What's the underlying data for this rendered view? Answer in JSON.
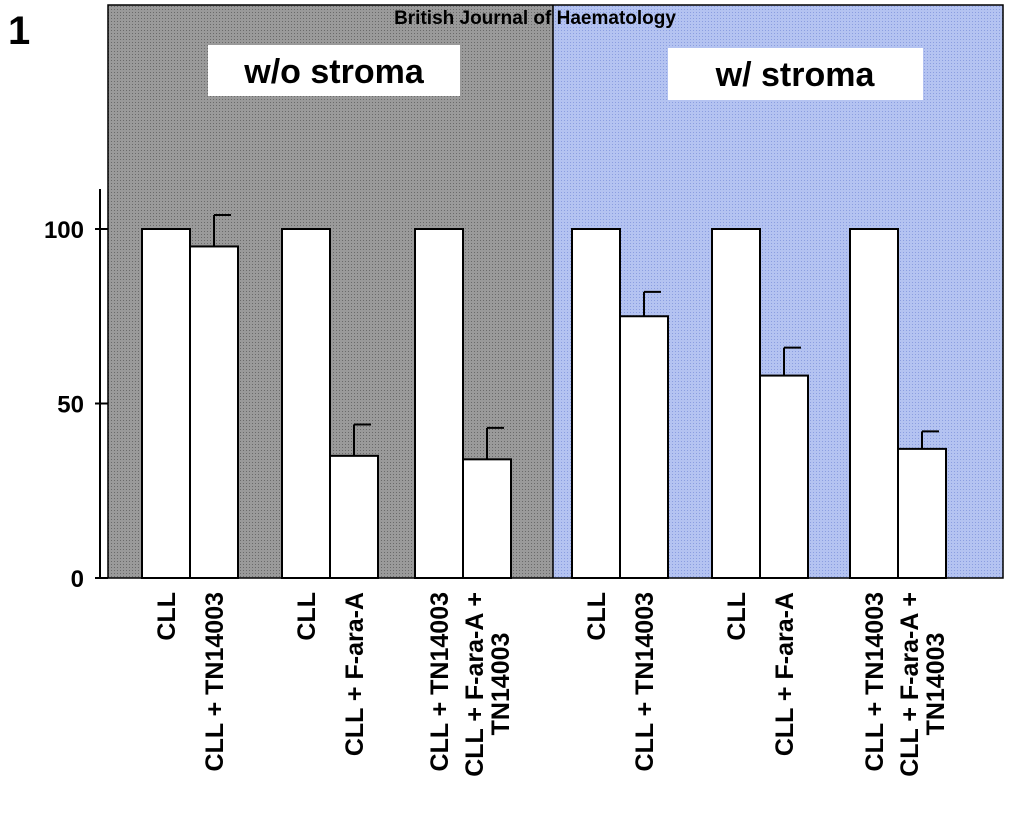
{
  "figure": {
    "panel_label": "1",
    "source_label": "British Journal of Haematology",
    "conditions": [
      "w/o stroma",
      "w/ stroma"
    ]
  },
  "colors": {
    "left_background": "#8c8c8c",
    "right_background": "#a9b9ec",
    "bars": "#ffffff",
    "outline": "#000000"
  },
  "chart_data": {
    "type": "bar",
    "title": "",
    "xlabel": "",
    "ylabel": "",
    "ylim": [
      0,
      100
    ],
    "yticks": [
      0,
      50,
      100
    ],
    "grid": false,
    "groups": [
      {
        "condition": "w/o stroma",
        "categories": [
          "CLL",
          "CLL + TN14003"
        ],
        "values": [
          100,
          95
        ],
        "errors": [
          null,
          9
        ]
      },
      {
        "condition": "w/o stroma",
        "categories": [
          "CLL",
          "CLL + F-ara-A"
        ],
        "values": [
          100,
          35
        ],
        "errors": [
          null,
          9
        ]
      },
      {
        "condition": "w/o stroma",
        "categories": [
          "CLL + TN14003",
          "CLL + F-ara-A + TN14003"
        ],
        "values": [
          100,
          34
        ],
        "errors": [
          null,
          9
        ]
      },
      {
        "condition": "w/ stroma",
        "categories": [
          "CLL",
          "CLL + TN14003"
        ],
        "values": [
          100,
          75
        ],
        "errors": [
          null,
          7
        ]
      },
      {
        "condition": "w/ stroma",
        "categories": [
          "CLL",
          "CLL + F-ara-A"
        ],
        "values": [
          100,
          58
        ],
        "errors": [
          null,
          8
        ]
      },
      {
        "condition": "w/ stroma",
        "categories": [
          "CLL + TN14003",
          "CLL + F-ara-A + TN14003"
        ],
        "values": [
          100,
          37
        ],
        "errors": [
          null,
          5
        ]
      }
    ]
  }
}
